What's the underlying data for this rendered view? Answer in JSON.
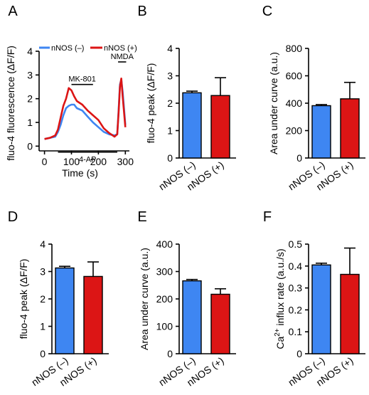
{
  "colors": {
    "blue": "#3e86f2",
    "red": "#dc1515",
    "axis": "#000000"
  },
  "chart_data": [
    {
      "panel_label": "A",
      "type": "line",
      "xlabel": "Time (s)",
      "ylabel": "fluo-4 fluorescence (ΔF/F)",
      "xlim": [
        -20,
        315
      ],
      "ylim": [
        -0.2,
        4
      ],
      "x_ticks": [
        0,
        100,
        200,
        300
      ],
      "y_ticks": [
        0,
        1,
        2,
        3,
        4
      ],
      "legend": "top",
      "annotations": {
        "mk801": {
          "label": "MK-801",
          "x_start": 100,
          "x_end": 180,
          "y": 2.6
        },
        "nmda": {
          "label": "NMDA",
          "x_start": 273,
          "x_end": 303,
          "y": 3.55
        },
        "fourap": {
          "label": "4-AP",
          "x_start": 50,
          "x_end": 270,
          "y": -0.25
        }
      },
      "series": [
        {
          "name": "nNOS (–)",
          "color": "#3e86f2",
          "x": [
            0,
            20,
            40,
            50,
            60,
            70,
            80,
            90,
            100,
            110,
            120,
            140,
            160,
            180,
            200,
            220,
            240,
            260,
            270,
            275,
            280,
            285,
            290,
            300
          ],
          "y": [
            0.3,
            0.35,
            0.4,
            0.6,
            0.9,
            1.3,
            1.6,
            1.7,
            1.75,
            1.75,
            1.6,
            1.5,
            1.25,
            1.0,
            0.8,
            0.6,
            0.5,
            0.45,
            0.5,
            1.5,
            2.6,
            2.8,
            2.3,
            0.9
          ]
        },
        {
          "name": "nNOS (+)",
          "color": "#dc1515",
          "x": [
            0,
            20,
            40,
            50,
            60,
            70,
            80,
            90,
            100,
            110,
            120,
            140,
            160,
            180,
            200,
            220,
            240,
            260,
            270,
            275,
            280,
            285,
            290,
            300
          ],
          "y": [
            0.3,
            0.35,
            0.45,
            0.7,
            1.2,
            1.7,
            2.0,
            2.45,
            2.35,
            2.1,
            1.9,
            1.75,
            1.5,
            1.3,
            1.1,
            0.75,
            0.55,
            0.4,
            0.5,
            1.4,
            2.5,
            2.85,
            2.1,
            0.8
          ]
        }
      ]
    },
    {
      "panel_label": "B",
      "type": "bar",
      "categories": [
        "nNOS (–)",
        "nNOS (+)"
      ],
      "values": [
        2.38,
        2.28
      ],
      "errors": [
        0.06,
        0.65
      ],
      "ylabel": "fluo-4 peak (ΔF/F)",
      "ylim": [
        0,
        4
      ],
      "y_ticks": [
        0,
        1,
        2,
        3,
        4
      ]
    },
    {
      "panel_label": "C",
      "type": "bar",
      "categories": [
        "nNOS (–)",
        "nNOS (+)"
      ],
      "values": [
        382,
        432
      ],
      "errors": [
        8,
        120
      ],
      "ylabel": "Area under curve (a.u.)",
      "ylim": [
        0,
        800
      ],
      "y_ticks": [
        0,
        200,
        400,
        600,
        800
      ]
    },
    {
      "panel_label": "D",
      "type": "bar",
      "categories": [
        "nNOS (–)",
        "nNOS (+)"
      ],
      "values": [
        3.13,
        2.82
      ],
      "errors": [
        0.06,
        0.53
      ],
      "ylabel": "fluo-4 peak (ΔF/F)",
      "ylim": [
        0,
        4
      ],
      "y_ticks": [
        0,
        1,
        2,
        3,
        4
      ]
    },
    {
      "panel_label": "E",
      "type": "bar",
      "categories": [
        "nNOS (–)",
        "nNOS (+)"
      ],
      "values": [
        266,
        217
      ],
      "errors": [
        5,
        20
      ],
      "ylabel": "Area under curve (a.u.)",
      "ylim": [
        0,
        400
      ],
      "y_ticks": [
        0,
        100,
        200,
        300,
        400
      ]
    },
    {
      "panel_label": "F",
      "type": "bar",
      "categories": [
        "nNOS (–)",
        "nNOS (+)"
      ],
      "values": [
        0.405,
        0.362
      ],
      "errors": [
        0.008,
        0.12
      ],
      "ylabel_base": "Ca",
      "ylabel_sup": "2+",
      "ylabel_rest": " influx rate (a.u./s)",
      "ylim": [
        0,
        0.5
      ],
      "y_ticks": [
        0,
        0.1,
        0.2,
        0.3,
        0.4,
        0.5
      ]
    }
  ]
}
